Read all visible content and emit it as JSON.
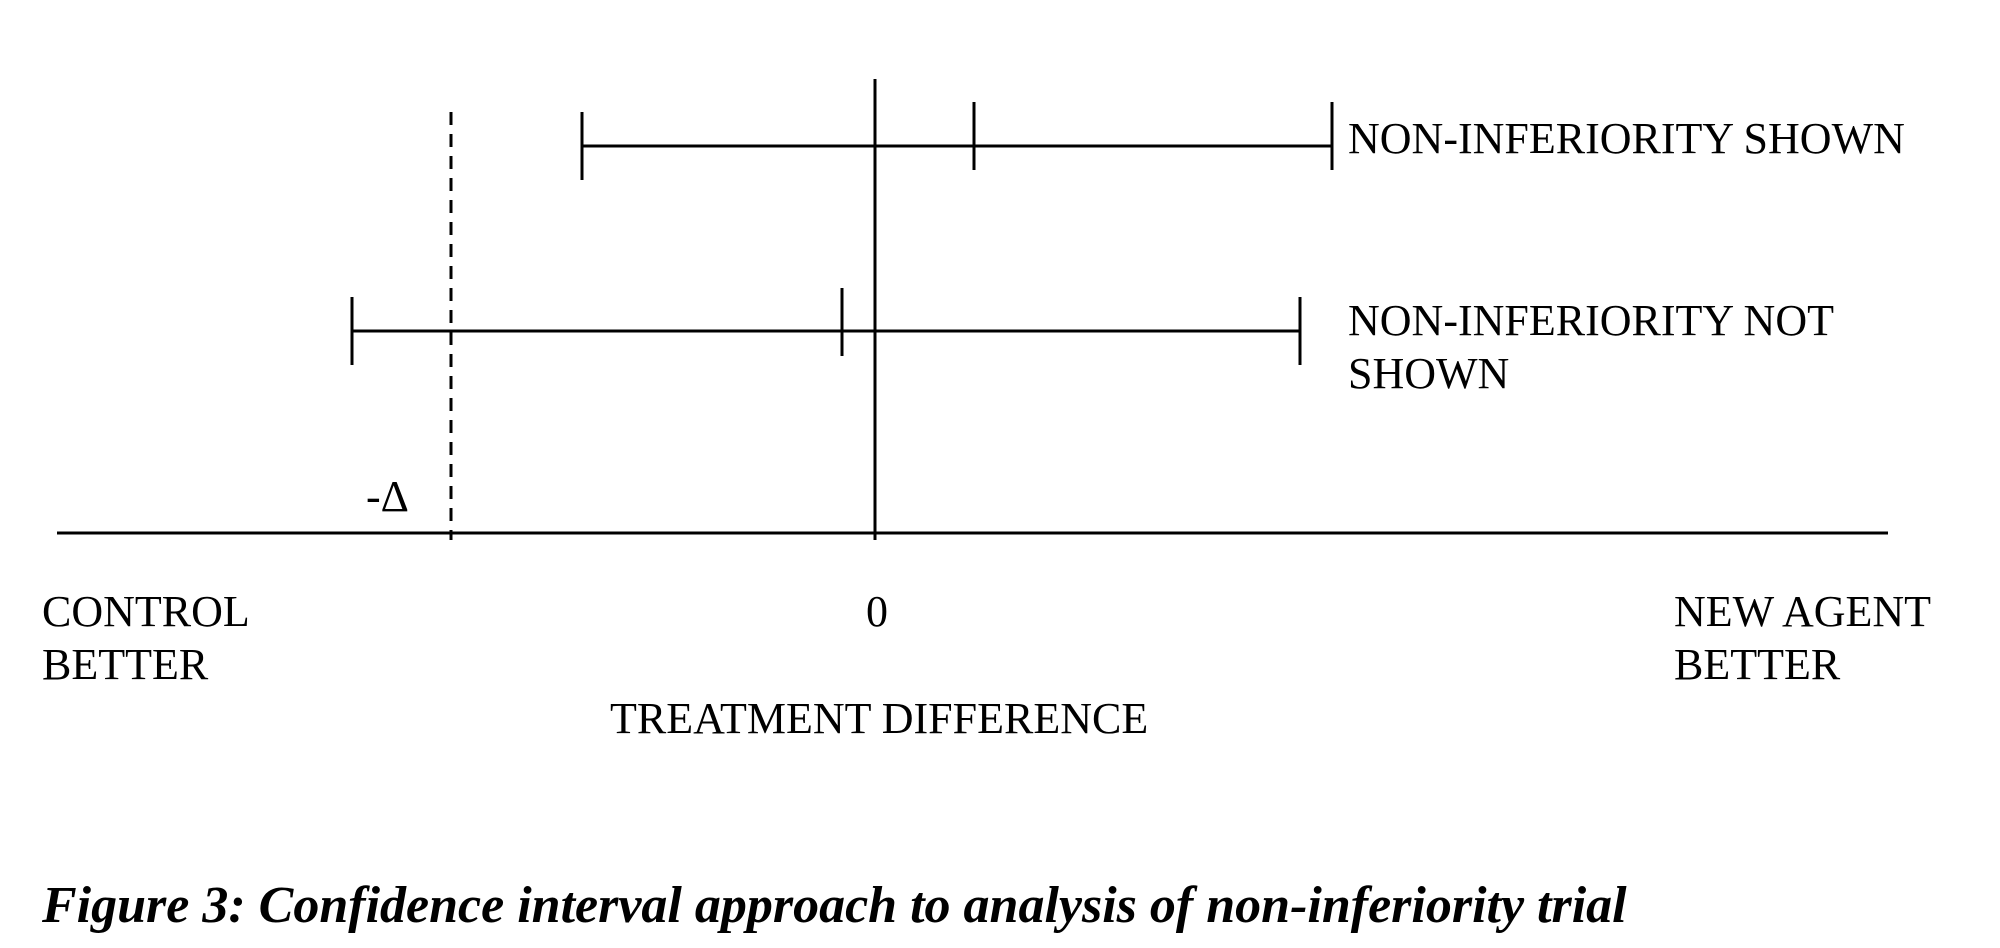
{
  "figure": {
    "caption": "Figure 3: Confidence interval approach to analysis of non-inferiority trial",
    "line_color": "#000000",
    "axis": {
      "label": "TREATMENT DIFFERENCE",
      "zero_label": "0",
      "left_end_label": "CONTROL\nBETTER",
      "right_end_label": "NEW AGENT\nBETTER"
    },
    "margin": {
      "label": "-Δ",
      "style": "dashed"
    },
    "intervals": [
      {
        "label": "NON-INFERIORITY SHOWN"
      },
      {
        "label": "NON-INFERIORITY NOT\nSHOWN"
      }
    ]
  }
}
